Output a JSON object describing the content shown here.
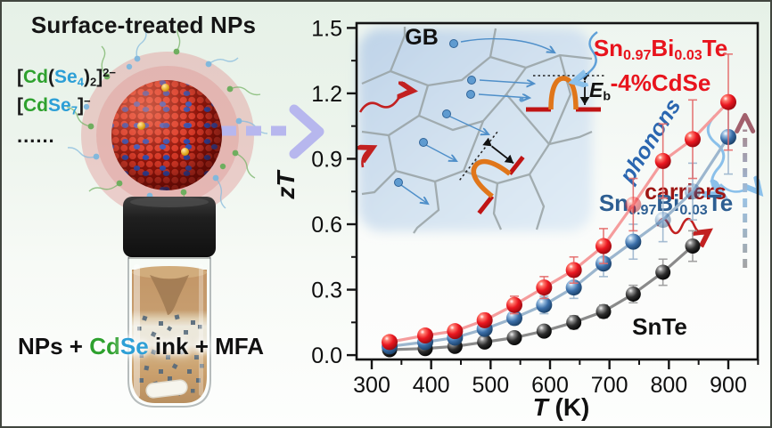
{
  "figure": {
    "left_panel": {
      "title": "Surface-treated NPs",
      "formula1": [
        {
          "t": "["
        },
        {
          "t": "Cd",
          "c": "#2ea12e"
        },
        {
          "t": "("
        },
        {
          "t": "Se",
          "c": "#2d9fd6"
        },
        {
          "t": "4",
          "s": "sub",
          "c": "#2d9fd6"
        },
        {
          "t": ")"
        },
        {
          "t": "2",
          "s": "sub"
        },
        {
          "t": "]"
        },
        {
          "t": "2−",
          "s": "sup"
        }
      ],
      "formula2": [
        {
          "t": "["
        },
        {
          "t": "Cd",
          "c": "#2ea12e"
        },
        {
          "t": "Se",
          "c": "#2d9fd6"
        },
        {
          "t": "7",
          "s": "sub",
          "c": "#2d9fd6"
        },
        {
          "t": "]"
        },
        {
          "t": "−",
          "s": "sup"
        }
      ],
      "ellipsis": "......",
      "ink_label": [
        {
          "t": "NPs + "
        },
        {
          "t": "Cd",
          "c": "#2ea12e"
        },
        {
          "t": "Se",
          "c": "#2d9fd6"
        },
        {
          "t": " ink + MFA"
        }
      ]
    },
    "inset": {
      "gb_label": "GB",
      "eb_label": [
        {
          "t": "E",
          "i": true
        },
        {
          "t": "b",
          "s": "sub"
        }
      ],
      "phonons_label": "phonons",
      "carriers_label": "carriers"
    },
    "labels": {
      "ylabel_rich": [
        {
          "t": "zT",
          "i": true
        }
      ],
      "xlabel_rich": [
        {
          "t": "T",
          "i": true
        },
        {
          "t": " (K)"
        }
      ],
      "legend_red_line1": [
        {
          "t": "Sn"
        },
        {
          "t": "0.97",
          "s": "sub"
        },
        {
          "t": "Bi"
        },
        {
          "t": "0.03",
          "s": "sub"
        },
        {
          "t": "Te"
        }
      ],
      "legend_red_line2": "-4%CdSe",
      "legend_blue": [
        {
          "t": "Sn"
        },
        {
          "t": "0.97",
          "s": "sub"
        },
        {
          "t": "Bi"
        },
        {
          "t": "0.03",
          "s": "sub"
        },
        {
          "t": "Te"
        }
      ],
      "legend_black": "SnTe"
    },
    "colors": {
      "accent_green": "#2ea12e",
      "accent_blue": "#2d9fd6",
      "legend_red": "#e8141d",
      "legend_blue": "#2d5e92",
      "carriers_red": "#9e1513",
      "phonons_blue": "#2a66b0",
      "process_arrow": "#b7b7ee"
    }
  },
  "chart_data": {
    "type": "line",
    "title": "",
    "xlabel": "T (K)",
    "ylabel": "zT",
    "x": [
      330,
      390,
      440,
      490,
      540,
      590,
      640,
      690,
      740,
      790,
      840,
      900
    ],
    "x_ticks": [
      300,
      400,
      500,
      600,
      700,
      800,
      900
    ],
    "x_minor_ticks": [
      350,
      450,
      550,
      650,
      750,
      850,
      950
    ],
    "y_ticks": [
      0.0,
      0.3,
      0.6,
      0.9,
      1.2,
      1.5
    ],
    "y_minor_ticks": [
      0.15,
      0.45,
      0.75,
      1.05,
      1.35
    ],
    "xlim": [
      274.5,
      949.5
    ],
    "ylim": [
      -0.02,
      1.522
    ],
    "grid": false,
    "legend_position": "inline",
    "series": [
      {
        "id": "snte",
        "name": "SnTe",
        "marker_color": "#0a0a0a",
        "line_color": "#8a8a8a",
        "error_color": "#9a9a9a",
        "marker_radius": 8.5,
        "values": [
          0.025,
          0.03,
          0.04,
          0.06,
          0.08,
          0.11,
          0.15,
          0.2,
          0.28,
          0.38,
          0.5
        ],
        "errors": [
          0.005,
          0.01,
          0.01,
          0.01,
          0.02,
          0.02,
          0.03,
          0.03,
          0.04,
          0.06,
          0.07
        ],
        "faded_points": []
      },
      {
        "id": "snbite",
        "name": "Sn0.97Bi0.03Te",
        "marker_color": "#2f5f96",
        "line_color": "#9cb6ce",
        "error_color": "#9cb6ce",
        "marker_radius": 9,
        "values": [
          0.04,
          0.06,
          0.08,
          0.12,
          0.17,
          0.23,
          0.31,
          0.42,
          0.52,
          0.62,
          0.75,
          1.0
        ],
        "errors": [
          0.01,
          0.015,
          0.02,
          0.02,
          0.03,
          0.04,
          0.05,
          0.06,
          0.08,
          0.1,
          0.13,
          0.17
        ],
        "faded_points": [
          9,
          10
        ]
      },
      {
        "id": "cdse",
        "name": "Sn0.97Bi0.03Te-4%CdSe",
        "marker_color": "#ea1720",
        "line_color": "#f59c9c",
        "error_color": "#e46b6b",
        "marker_radius": 9,
        "values": [
          0.06,
          0.09,
          0.11,
          0.16,
          0.23,
          0.31,
          0.39,
          0.5,
          0.69,
          0.89,
          0.99,
          1.16
        ],
        "errors": [
          0.015,
          0.02,
          0.02,
          0.03,
          0.04,
          0.05,
          0.06,
          0.08,
          0.12,
          0.17,
          0.18,
          0.22
        ],
        "faded_points": [
          8
        ]
      }
    ],
    "annotation_arrow": {
      "T": 928,
      "zT_from": 0.4,
      "zT_to": 1.1
    }
  }
}
